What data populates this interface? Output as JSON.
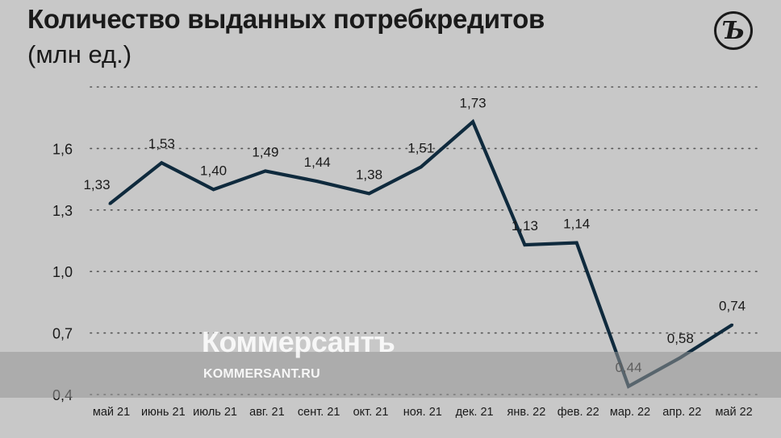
{
  "header": {
    "title": "Количество выданных потребкредитов",
    "subtitle": "(млн ед.)",
    "logo_glyph": "Ъ"
  },
  "watermark": {
    "brand": "Коммерсантъ",
    "url": "KOMMERSANT.RU"
  },
  "colors": {
    "background": "#c8c8c8",
    "line": "#0f2a3d",
    "text": "#1a1a1a",
    "grid": "#555555"
  },
  "chart_data": {
    "type": "line",
    "title": "Количество выданных потребкредитов",
    "subtitle": "(млн ед.)",
    "categories": [
      "май 21",
      "июнь 21",
      "июль 21",
      "авг. 21",
      "сент. 21",
      "окт. 21",
      "ноя. 21",
      "дек. 21",
      "янв. 22",
      "фев. 22",
      "мар. 22",
      "апр. 22",
      "май 22"
    ],
    "series": [
      {
        "values": [
          1.33,
          1.53,
          1.4,
          1.49,
          1.44,
          1.38,
          1.51,
          1.73,
          1.13,
          1.14,
          0.44,
          0.58,
          0.74
        ],
        "labels": [
          "1,33",
          "1,53",
          "1,40",
          "1,49",
          "1,44",
          "1,38",
          "1,51",
          "1,73",
          "1,13",
          "1,14",
          "0,44",
          "0,58",
          "0,74"
        ]
      }
    ],
    "yticks": [
      0.4,
      0.7,
      1.0,
      1.3,
      1.6,
      1.9
    ],
    "ytick_labels": [
      "0,4",
      "0,7",
      "1,0",
      "1,3",
      "1,6",
      ""
    ],
    "ylim": [
      0.4,
      1.9
    ],
    "grid": "horizontal dotted",
    "legend": "none"
  }
}
